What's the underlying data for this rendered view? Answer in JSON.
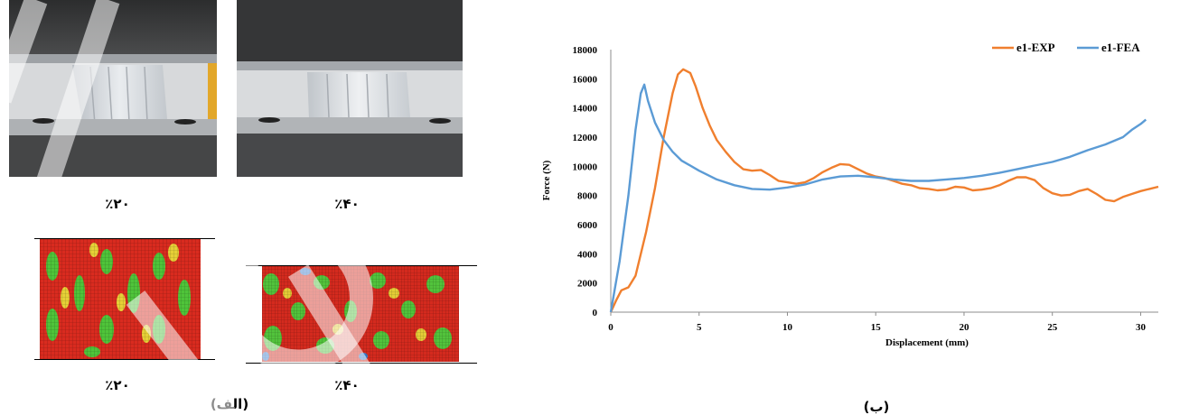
{
  "panel_left": {
    "photo_labels": [
      "٪۲۰",
      "٪۴۰"
    ],
    "fea_labels": [
      "٪۲۰",
      "٪۴۰"
    ],
    "caption": "(الف)"
  },
  "panel_right": {
    "caption": "(ب)"
  },
  "colors": {
    "exp": "#f07f2e",
    "fea": "#5b9bd5"
  },
  "chart_data": {
    "type": "line",
    "xlabel": "Displacement (mm)",
    "ylabel": "Force (N)",
    "xlim": [
      0,
      31
    ],
    "ylim": [
      0,
      18000
    ],
    "xticks": [
      0,
      5,
      10,
      15,
      20,
      25,
      30
    ],
    "yticks": [
      0,
      2000,
      4000,
      6000,
      8000,
      10000,
      12000,
      14000,
      16000,
      18000
    ],
    "grid": false,
    "legend_position": "top-right",
    "series": [
      {
        "name": "e1-EXP",
        "color": "#f07f2e",
        "points": [
          [
            0,
            0
          ],
          [
            0.3,
            800
          ],
          [
            0.6,
            1500
          ],
          [
            1.0,
            1700
          ],
          [
            1.4,
            2500
          ],
          [
            2.0,
            5500
          ],
          [
            2.5,
            8500
          ],
          [
            3.0,
            12000
          ],
          [
            3.5,
            15000
          ],
          [
            3.8,
            16300
          ],
          [
            4.1,
            16650
          ],
          [
            4.5,
            16400
          ],
          [
            4.8,
            15500
          ],
          [
            5.2,
            14000
          ],
          [
            5.6,
            12800
          ],
          [
            6.0,
            11800
          ],
          [
            6.5,
            11000
          ],
          [
            7.0,
            10300
          ],
          [
            7.5,
            9800
          ],
          [
            8.0,
            9700
          ],
          [
            8.5,
            9750
          ],
          [
            9.0,
            9400
          ],
          [
            9.5,
            9000
          ],
          [
            10.0,
            8900
          ],
          [
            10.5,
            8800
          ],
          [
            11.0,
            8900
          ],
          [
            11.5,
            9200
          ],
          [
            12.0,
            9600
          ],
          [
            12.5,
            9900
          ],
          [
            13.0,
            10150
          ],
          [
            13.5,
            10100
          ],
          [
            14.0,
            9800
          ],
          [
            14.5,
            9500
          ],
          [
            15.0,
            9300
          ],
          [
            15.5,
            9200
          ],
          [
            16.0,
            9000
          ],
          [
            16.5,
            8800
          ],
          [
            17.0,
            8700
          ],
          [
            17.5,
            8500
          ],
          [
            18.0,
            8450
          ],
          [
            18.5,
            8350
          ],
          [
            19.0,
            8400
          ],
          [
            19.5,
            8600
          ],
          [
            20.0,
            8550
          ],
          [
            20.5,
            8350
          ],
          [
            21.0,
            8400
          ],
          [
            21.5,
            8500
          ],
          [
            22.0,
            8700
          ],
          [
            22.5,
            9000
          ],
          [
            23.0,
            9250
          ],
          [
            23.5,
            9250
          ],
          [
            24.0,
            9050
          ],
          [
            24.5,
            8500
          ],
          [
            25.0,
            8150
          ],
          [
            25.5,
            8000
          ],
          [
            26.0,
            8050
          ],
          [
            26.5,
            8300
          ],
          [
            27.0,
            8450
          ],
          [
            27.5,
            8100
          ],
          [
            28.0,
            7700
          ],
          [
            28.5,
            7600
          ],
          [
            29.0,
            7900
          ],
          [
            29.5,
            8100
          ],
          [
            30.0,
            8300
          ],
          [
            30.5,
            8450
          ],
          [
            31.0,
            8600
          ]
        ]
      },
      {
        "name": "e1-FEA",
        "color": "#5b9bd5",
        "points": [
          [
            0,
            0
          ],
          [
            0.5,
            3500
          ],
          [
            1.0,
            8000
          ],
          [
            1.4,
            12500
          ],
          [
            1.7,
            15000
          ],
          [
            1.9,
            15600
          ],
          [
            2.1,
            14500
          ],
          [
            2.5,
            13000
          ],
          [
            3.0,
            11800
          ],
          [
            3.5,
            11000
          ],
          [
            4.0,
            10400
          ],
          [
            5.0,
            9700
          ],
          [
            6.0,
            9100
          ],
          [
            7.0,
            8700
          ],
          [
            8.0,
            8450
          ],
          [
            9.0,
            8400
          ],
          [
            10.0,
            8550
          ],
          [
            11.0,
            8750
          ],
          [
            12.0,
            9100
          ],
          [
            13.0,
            9300
          ],
          [
            14.0,
            9350
          ],
          [
            15.0,
            9250
          ],
          [
            16.0,
            9100
          ],
          [
            17.0,
            9000
          ],
          [
            18.0,
            9000
          ],
          [
            19.0,
            9100
          ],
          [
            20.0,
            9200
          ],
          [
            21.0,
            9350
          ],
          [
            22.0,
            9550
          ],
          [
            23.0,
            9800
          ],
          [
            24.0,
            10050
          ],
          [
            25.0,
            10300
          ],
          [
            26.0,
            10650
          ],
          [
            27.0,
            11100
          ],
          [
            28.0,
            11500
          ],
          [
            29.0,
            12000
          ],
          [
            29.5,
            12500
          ],
          [
            30.0,
            12900
          ],
          [
            30.3,
            13200
          ]
        ]
      }
    ]
  }
}
